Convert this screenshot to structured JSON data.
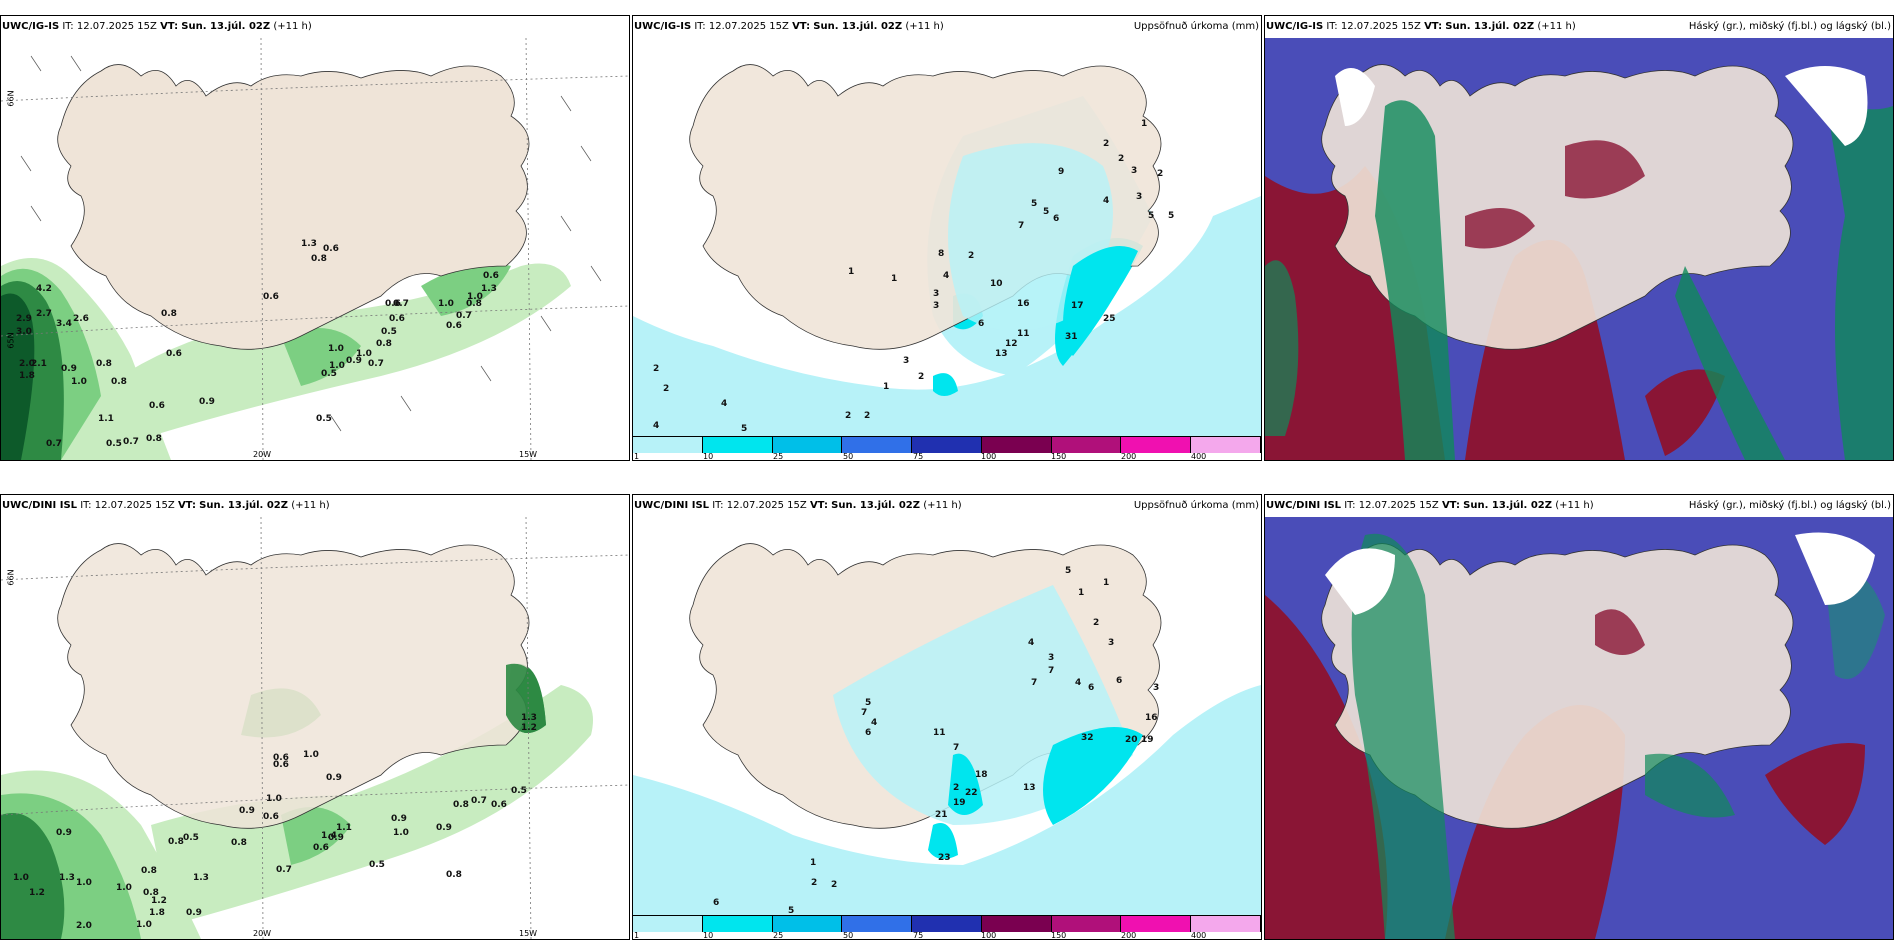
{
  "panels": [
    {
      "model": "UWC/IG-IS",
      "it_label": "IT:",
      "it": "12.07.2025 15Z",
      "vt_label": "VT:",
      "vt": "Sun. 13.júl. 02Z",
      "lead": "(+11 h)",
      "right_title": ""
    },
    {
      "model": "UWC/IG-IS",
      "it_label": "IT:",
      "it": "12.07.2025 15Z",
      "vt_label": "VT:",
      "vt": "Sun. 13.júl. 02Z",
      "lead": "(+11 h)",
      "right_title": "Uppsöfnuð úrkoma (mm)"
    },
    {
      "model": "UWC/IG-IS",
      "it_label": "IT:",
      "it": "12.07.2025 15Z",
      "vt_label": "VT:",
      "vt": "Sun. 13.júl. 02Z",
      "lead": "(+11 h)",
      "right_title": "Háský (gr.), miðský (fj.bl.) og lágský (bl.)"
    },
    {
      "model": "UWC/DINI ISL",
      "it_label": "IT:",
      "it": "12.07.2025 15Z",
      "vt_label": "VT:",
      "vt": "Sun. 13.júl. 02Z",
      "lead": "(+11 h)",
      "right_title": ""
    },
    {
      "model": "UWC/DINI ISL",
      "it_label": "IT:",
      "it": "12.07.2025 15Z",
      "vt_label": "VT:",
      "vt": "Sun. 13.júl. 02Z",
      "lead": "(+11 h)",
      "right_title": "Uppsöfnuð úrkoma (mm)"
    },
    {
      "model": "UWC/DINI ISL",
      "it_label": "IT:",
      "it": "12.07.2025 15Z",
      "vt_label": "VT:",
      "vt": "Sun. 13.júl. 02Z",
      "lead": "(+11 h)",
      "right_title": "Háský (gr.), miðský (fj.bl.) og lágský (bl.)"
    }
  ],
  "axis_labels": {
    "lat66": "66N",
    "lat65": "65N",
    "lon20": "20W",
    "lon15": "15W"
  },
  "precip_legend": {
    "ticks": [
      "1",
      "10",
      "25",
      "50",
      "75",
      "100",
      "150",
      "200",
      "400"
    ],
    "colors": [
      "#b7f2f8",
      "#00e5ee",
      "#00bfe8",
      "#3070e8",
      "#2030b0",
      "#7a0050",
      "#b0107a",
      "#f010b0",
      "#f4a8ec"
    ]
  },
  "colors": {
    "land": "#efe4d8",
    "green_light": "#c8ecc0",
    "green_mid": "#7ccf82",
    "green_dark": "#2e8a44",
    "green_darkest": "#0d5a2a",
    "cyan_light": "#b7f2f8",
    "cyan": "#00e5ee",
    "high_cloud": "#0f8a5a",
    "mid_cloud": "#8a1535",
    "low_cloud": "#4a4db8"
  },
  "wind_values": {
    "top": [
      "4.2",
      "2.7",
      "2.9",
      "3.0",
      "3.4",
      "2.6",
      "2.0",
      "1.8",
      "2.1",
      "1.3",
      "0.6",
      "0.8",
      "0.8",
      "0.6",
      "1.0",
      "0.9",
      "0.8",
      "1.1",
      "0.8",
      "0.5",
      "0.7",
      "0.8",
      "0.6",
      "0.9",
      "0.7",
      "0.5",
      "1.0",
      "1.0",
      "0.9",
      "1.0",
      "0.7",
      "0.8",
      "0.5",
      "0.6",
      "1.0",
      "0.6",
      "0.7",
      "0.8",
      "1.3",
      "0.6",
      "1.0",
      "0.6",
      "0.6",
      "0.7",
      "0.5"
    ],
    "bottom": [
      "0.9",
      "1.0",
      "1.2",
      "1.3",
      "1.0",
      "0.8",
      "0.9",
      "1.3",
      "0.5",
      "0.8",
      "0.8",
      "2.0",
      "1.0",
      "1.8",
      "1.2",
      "1.0",
      "0.7",
      "0.9",
      "0.6",
      "1.0",
      "0.8",
      "0.5",
      "0.6",
      "0.6",
      "1.0",
      "0.9",
      "0.9",
      "0.8",
      "0.7",
      "0.6",
      "0.5",
      "0.8",
      "1.3",
      "1.2",
      "1.4",
      "1.1",
      "0.9",
      "0.6",
      "0.9",
      "1.0"
    ]
  },
  "precip_values": {
    "top": [
      "1",
      "2",
      "9",
      "2",
      "3",
      "2",
      "5",
      "3",
      "4",
      "5",
      "5",
      "7",
      "5",
      "6",
      "8",
      "2",
      "4",
      "1",
      "3",
      "3",
      "6",
      "10",
      "16",
      "17",
      "11",
      "12",
      "13",
      "25",
      "31",
      "3",
      "2",
      "1",
      "1",
      "2",
      "4",
      "2",
      "5",
      "4",
      "2",
      "2"
    ],
    "bottom": [
      "5",
      "1",
      "1",
      "2",
      "3",
      "4",
      "3",
      "7",
      "6",
      "7",
      "4",
      "6",
      "5",
      "6",
      "4",
      "11",
      "7",
      "18",
      "13",
      "21",
      "19",
      "22",
      "32",
      "20",
      "19",
      "16",
      "23",
      "2",
      "2",
      "6",
      "5",
      "7",
      "1",
      "2",
      "3"
    ]
  }
}
